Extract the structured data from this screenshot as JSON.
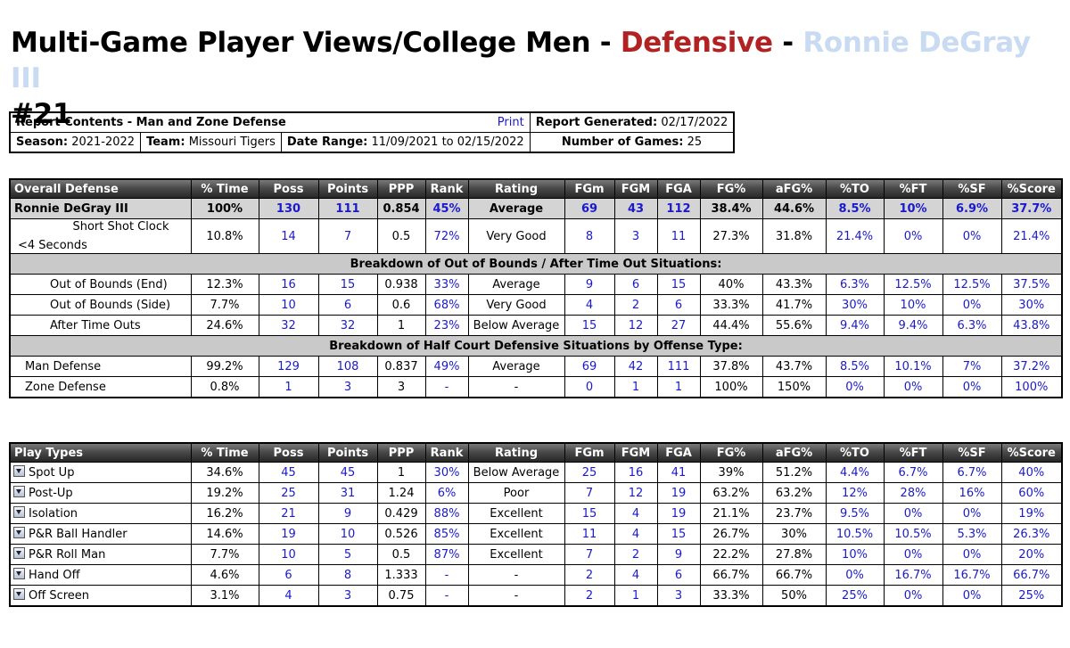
{
  "title": {
    "prefix": "Multi-Game Player Views/College Men - ",
    "defensive": "Defensive",
    "sep": " - ",
    "player": "Ronnie DeGray III",
    "number": "#21"
  },
  "info": {
    "report_contents": "Report Contents - Man and Zone Defense",
    "print": "Print",
    "report_generated_label": "Report Generated:",
    "report_generated": "02/17/2022",
    "season_label": "Season:",
    "season": "2021-2022",
    "team_label": "Team:",
    "team": "Missouri Tigers",
    "date_range_label": "Date Range:",
    "date_range": "11/09/2021 to 02/15/2022",
    "games_label": "Number of Games:",
    "games": "25"
  },
  "overall": {
    "headers": [
      "Overall Defense",
      "% Time",
      "Poss",
      "Points",
      "PPP",
      "Rank",
      "Rating",
      "FGm",
      "FGM",
      "FGA",
      "FG%",
      "aFG%",
      "%TO",
      "%FT",
      "%SF",
      "%Score"
    ],
    "player_row": [
      "Ronnie DeGray III",
      "100%",
      "130",
      "111",
      "0.854",
      "45%",
      "Average",
      "69",
      "43",
      "112",
      "38.4%",
      "44.6%",
      "8.5%",
      "10%",
      "6.9%",
      "37.7%"
    ],
    "shot_clock_a": "Short Shot Clock",
    "shot_clock_b": "<4 Seconds",
    "shot_clock_row": [
      "10.8%",
      "14",
      "7",
      "0.5",
      "72%",
      "Very Good",
      "8",
      "3",
      "11",
      "27.3%",
      "31.8%",
      "21.4%",
      "0%",
      "0%",
      "21.4%"
    ],
    "oob_header": "Breakdown of Out of Bounds / After Time Out Situations:",
    "oob_rows": [
      [
        "Out of Bounds (End)",
        "12.3%",
        "16",
        "15",
        "0.938",
        "33%",
        "Average",
        "9",
        "6",
        "15",
        "40%",
        "43.3%",
        "6.3%",
        "12.5%",
        "12.5%",
        "37.5%"
      ],
      [
        "Out of Bounds (Side)",
        "7.7%",
        "10",
        "6",
        "0.6",
        "68%",
        "Very Good",
        "4",
        "2",
        "6",
        "33.3%",
        "41.7%",
        "30%",
        "10%",
        "0%",
        "30%"
      ],
      [
        "After Time Outs",
        "24.6%",
        "32",
        "32",
        "1",
        "23%",
        "Below Average",
        "15",
        "12",
        "27",
        "44.4%",
        "55.6%",
        "9.4%",
        "9.4%",
        "6.3%",
        "43.8%"
      ]
    ],
    "half_header": "Breakdown of Half Court Defensive Situations by Offense Type:",
    "half_rows": [
      [
        "Man Defense",
        "99.2%",
        "129",
        "108",
        "0.837",
        "49%",
        "Average",
        "69",
        "42",
        "111",
        "37.8%",
        "43.7%",
        "8.5%",
        "10.1%",
        "7%",
        "37.2%"
      ],
      [
        "Zone Defense",
        "0.8%",
        "1",
        "3",
        "3",
        "-",
        "-",
        "0",
        "1",
        "1",
        "100%",
        "150%",
        "0%",
        "0%",
        "0%",
        "100%"
      ]
    ]
  },
  "plays": {
    "headers": [
      "Play Types",
      "% Time",
      "Poss",
      "Points",
      "PPP",
      "Rank",
      "Rating",
      "FGm",
      "FGM",
      "FGA",
      "FG%",
      "aFG%",
      "%TO",
      "%FT",
      "%SF",
      "%Score"
    ],
    "rows": [
      [
        "Spot Up",
        "34.6%",
        "45",
        "45",
        "1",
        "30%",
        "Below Average",
        "25",
        "16",
        "41",
        "39%",
        "51.2%",
        "4.4%",
        "6.7%",
        "6.7%",
        "40%"
      ],
      [
        "Post-Up",
        "19.2%",
        "25",
        "31",
        "1.24",
        "6%",
        "Poor",
        "7",
        "12",
        "19",
        "63.2%",
        "63.2%",
        "12%",
        "28%",
        "16%",
        "60%"
      ],
      [
        "Isolation",
        "16.2%",
        "21",
        "9",
        "0.429",
        "88%",
        "Excellent",
        "15",
        "4",
        "19",
        "21.1%",
        "23.7%",
        "9.5%",
        "0%",
        "0%",
        "19%"
      ],
      [
        "P&R Ball Handler",
        "14.6%",
        "19",
        "10",
        "0.526",
        "85%",
        "Excellent",
        "11",
        "4",
        "15",
        "26.7%",
        "30%",
        "10.5%",
        "10.5%",
        "5.3%",
        "26.3%"
      ],
      [
        "P&R Roll Man",
        "7.7%",
        "10",
        "5",
        "0.5",
        "87%",
        "Excellent",
        "7",
        "2",
        "9",
        "22.2%",
        "27.8%",
        "10%",
        "0%",
        "0%",
        "20%"
      ],
      [
        "Hand Off",
        "4.6%",
        "6",
        "8",
        "1.333",
        "-",
        "-",
        "2",
        "4",
        "6",
        "66.7%",
        "66.7%",
        "0%",
        "16.7%",
        "16.7%",
        "66.7%"
      ],
      [
        "Off Screen",
        "3.1%",
        "4",
        "3",
        "0.75",
        "-",
        "-",
        "2",
        "1",
        "3",
        "33.3%",
        "50%",
        "25%",
        "0%",
        "0%",
        "25%"
      ]
    ]
  },
  "colors": {
    "defensive": "#b22222",
    "player": "#c9dbf2",
    "link_blue": "#1a1acc"
  }
}
